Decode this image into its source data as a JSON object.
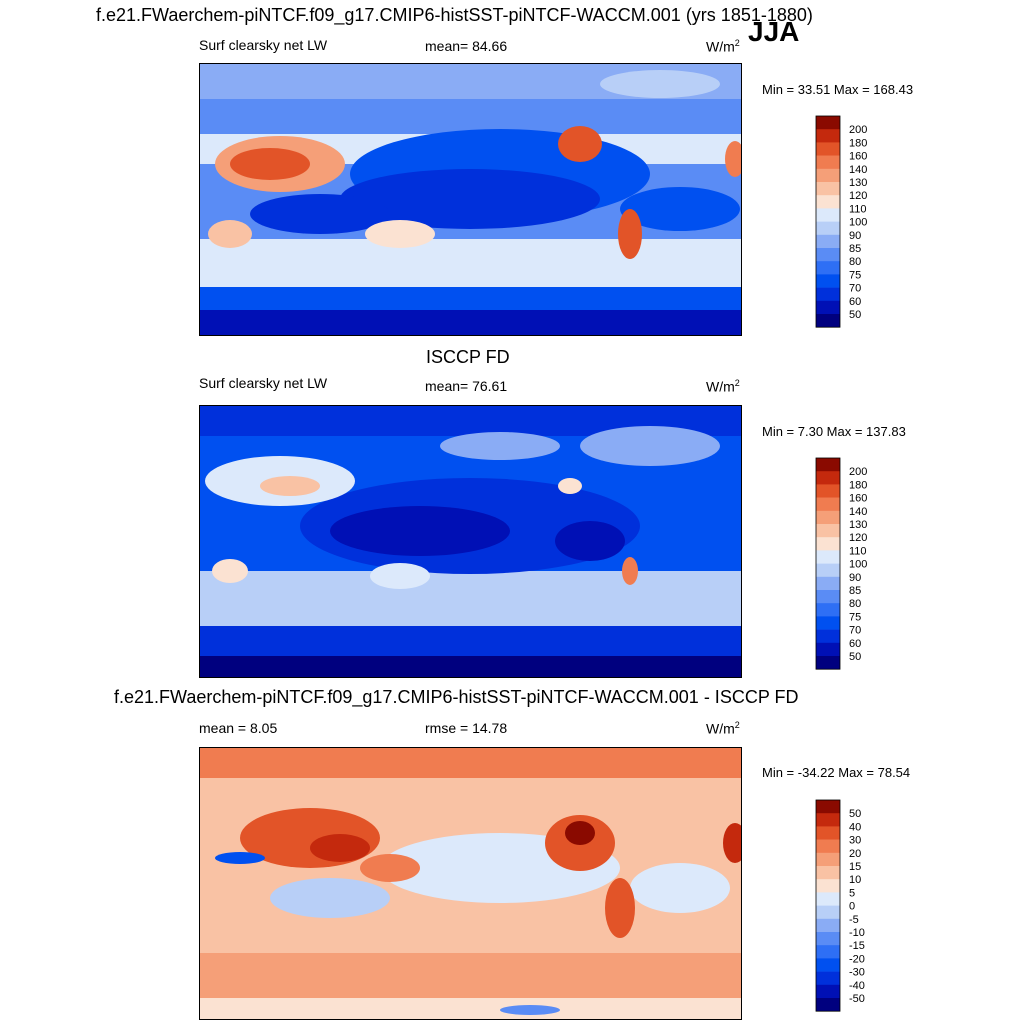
{
  "season": "JJA",
  "panels": [
    {
      "title": "f.e21.FWaerchem-piNTCF.f09_g17.CMIP6-histSST-piNTCF-WACCM.001 (yrs 1851-1880)",
      "left_label": "Surf clearsky net LW",
      "center_label": "mean=  84.66",
      "units": "W/m",
      "units_sup": "2",
      "minmax": "Min =  33.51 Max = 168.43",
      "colorbar": {
        "labels": [
          "200",
          "180",
          "160",
          "140",
          "130",
          "120",
          "110",
          "100",
          "90",
          "85",
          "80",
          "75",
          "70",
          "60",
          "50"
        ],
        "colors": [
          "#00007f",
          "#0010b5",
          "#0030db",
          "#0050f0",
          "#2e6ff5",
          "#5a8cf5",
          "#8aacf5",
          "#b8cff7",
          "#dce9fb",
          "#fbe2d2",
          "#f9c2a4",
          "#f59f78",
          "#f07c50",
          "#e25428",
          "#c4290d",
          "#8a0a00"
        ]
      }
    },
    {
      "title": "ISCCP FD",
      "left_label": "Surf clearsky net LW",
      "center_label": "mean=  76.61",
      "units": "W/m",
      "units_sup": "2",
      "minmax": "Min =   7.30 Max = 137.83",
      "colorbar": {
        "labels": [
          "200",
          "180",
          "160",
          "140",
          "130",
          "120",
          "110",
          "100",
          "90",
          "85",
          "80",
          "75",
          "70",
          "60",
          "50"
        ],
        "colors": [
          "#00007f",
          "#0010b5",
          "#0030db",
          "#0050f0",
          "#2e6ff5",
          "#5a8cf5",
          "#8aacf5",
          "#b8cff7",
          "#dce9fb",
          "#fbe2d2",
          "#f9c2a4",
          "#f59f78",
          "#f07c50",
          "#e25428",
          "#c4290d",
          "#8a0a00"
        ]
      }
    },
    {
      "title": "f.e21.FWaerchem-piNTCF.f09_g17.CMIP6-histSST-piNTCF-WACCM.001 - ISCCP FD",
      "left_label": "mean =   8.05",
      "center_label": "rmse =  14.78",
      "units": "W/m",
      "units_sup": "2",
      "minmax": "Min = -34.22 Max =  78.54",
      "colorbar": {
        "labels": [
          "50",
          "40",
          "30",
          "20",
          "15",
          "10",
          "5",
          "0",
          "-5",
          "-10",
          "-15",
          "-20",
          "-30",
          "-40",
          "-50"
        ],
        "colors": [
          "#00007f",
          "#0010b5",
          "#0030db",
          "#0050f0",
          "#2e6ff5",
          "#5a8cf5",
          "#8aacf5",
          "#b8cff7",
          "#dce9fb",
          "#fbe2d2",
          "#f9c2a4",
          "#f59f78",
          "#f07c50",
          "#e25428",
          "#c4290d",
          "#8a0a00"
        ]
      }
    }
  ]
}
